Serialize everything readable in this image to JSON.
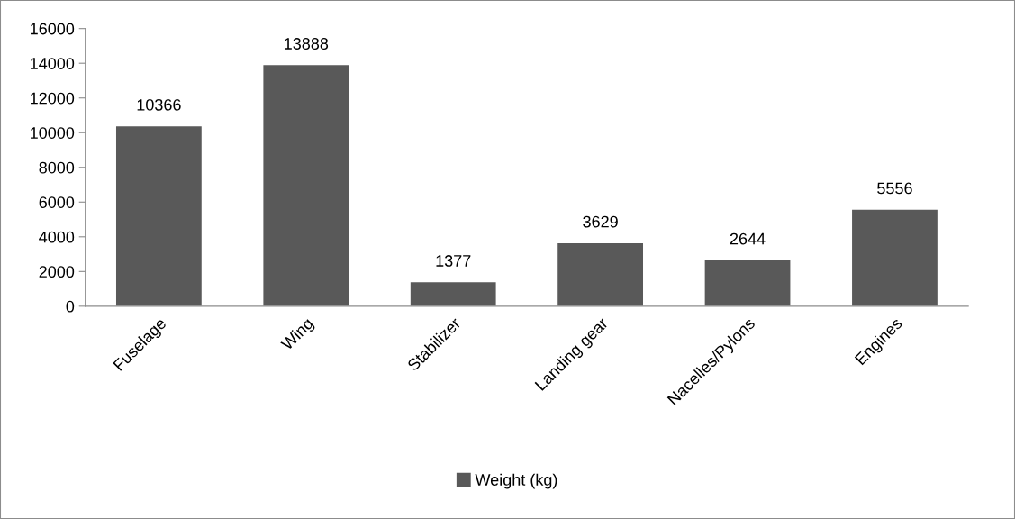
{
  "chart_data": {
    "type": "bar",
    "categories": [
      "Fuselage",
      "Wing",
      "Stabilizer",
      "Landing gear",
      "Nacelles/Pylons",
      "Engines"
    ],
    "series": [
      {
        "name": "Weight (kg)",
        "color": "#595959",
        "values": [
          10366,
          13888,
          1377,
          3629,
          2644,
          5556
        ]
      }
    ],
    "ylim": [
      0,
      16000
    ],
    "yticks": [
      0,
      2000,
      4000,
      6000,
      8000,
      10000,
      12000,
      14000,
      16000
    ],
    "data_labels": true,
    "legend": "bottom",
    "grid": false
  }
}
